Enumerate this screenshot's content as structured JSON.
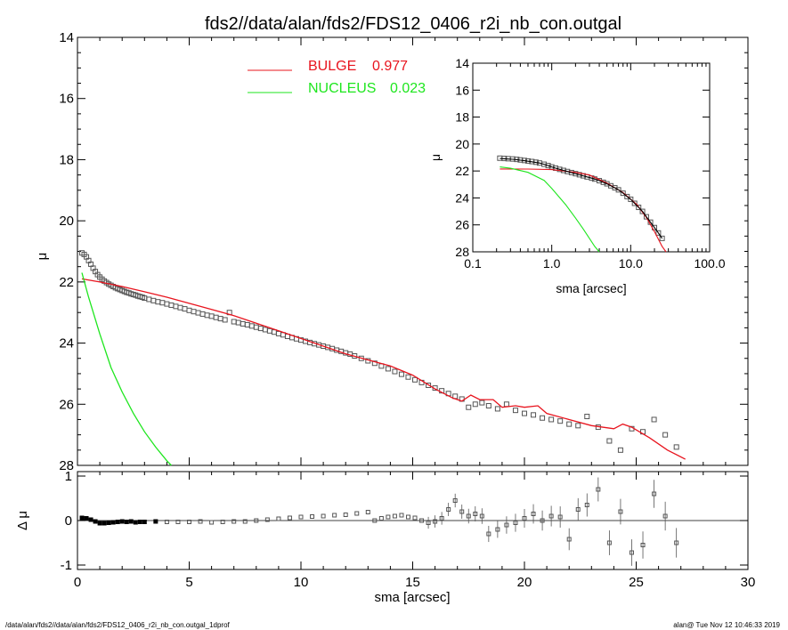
{
  "title": "fds2//data/alan/fds2/FDS12_0406_r2i_nb_con.outgal",
  "footer_left": "/data/alan/fds2//data/alan/fds2/FDS12_0406_r2i_nb_con.outgal_1dprof",
  "footer_right": "alan@  Tue Nov 12 10:46:33 2019",
  "colors": {
    "bulge": "#e8141e",
    "nucleus": "#1ee61e",
    "data": "#555555",
    "axes": "#000000"
  },
  "legend": [
    {
      "name": "BULGE",
      "value": "0.977",
      "color": "#e8141e"
    },
    {
      "name": "NUCLEUS",
      "value": "0.023",
      "color": "#1ee61e"
    }
  ],
  "chart_data": [
    {
      "id": "main",
      "type": "scatter",
      "xlabel": "",
      "ylabel": "μ",
      "xlim": [
        0,
        30
      ],
      "ylim": [
        28,
        14
      ],
      "y_inverted": true,
      "yticks": [
        "14",
        "16",
        "18",
        "20",
        "22",
        "24",
        "26",
        "28"
      ],
      "series": [
        {
          "name": "data",
          "style": "squares",
          "x": [
            0.2,
            0.3,
            0.4,
            0.5,
            0.6,
            0.7,
            0.8,
            0.9,
            1.0,
            1.1,
            1.2,
            1.3,
            1.4,
            1.5,
            1.6,
            1.7,
            1.8,
            1.9,
            2.0,
            2.1,
            2.2,
            2.3,
            2.4,
            2.5,
            2.6,
            2.7,
            2.8,
            2.9,
            3.0,
            3.2,
            3.4,
            3.6,
            3.8,
            4.0,
            4.2,
            4.4,
            4.6,
            4.8,
            5.0,
            5.2,
            5.4,
            5.6,
            5.8,
            6.0,
            6.2,
            6.4,
            6.6,
            6.8,
            7.0,
            7.2,
            7.4,
            7.6,
            7.8,
            8.0,
            8.2,
            8.4,
            8.6,
            8.8,
            9.0,
            9.2,
            9.4,
            9.6,
            9.8,
            10.0,
            10.2,
            10.4,
            10.6,
            10.8,
            11.0,
            11.2,
            11.4,
            11.6,
            11.8,
            12.0,
            12.2,
            12.4,
            12.7,
            13.0,
            13.3,
            13.6,
            13.9,
            14.2,
            14.5,
            14.8,
            15.1,
            15.4,
            15.7,
            16.0,
            16.3,
            16.6,
            16.9,
            17.2,
            17.5,
            17.8,
            18.1,
            18.4,
            18.8,
            19.2,
            19.6,
            20.0,
            20.4,
            20.8,
            21.2,
            21.6,
            22.0,
            22.4,
            22.8,
            23.3,
            23.8,
            24.3,
            24.8,
            25.3,
            25.8,
            26.3,
            26.8
          ],
          "y": [
            21.05,
            21.1,
            21.18,
            21.3,
            21.42,
            21.55,
            21.66,
            21.76,
            21.84,
            21.91,
            21.97,
            22.02,
            22.07,
            22.11,
            22.15,
            22.19,
            22.22,
            22.25,
            22.28,
            22.31,
            22.34,
            22.36,
            22.39,
            22.41,
            22.43,
            22.46,
            22.48,
            22.5,
            22.53,
            22.57,
            22.61,
            22.65,
            22.68,
            22.72,
            22.76,
            22.8,
            22.84,
            22.88,
            22.93,
            22.97,
            23.01,
            23.05,
            23.09,
            23.12,
            23.16,
            23.2,
            23.24,
            23.0,
            23.3,
            23.33,
            23.37,
            23.4,
            23.44,
            23.48,
            23.52,
            23.56,
            23.6,
            23.64,
            23.69,
            23.73,
            23.78,
            23.82,
            23.86,
            23.9,
            23.94,
            23.98,
            24.02,
            24.06,
            24.1,
            24.14,
            24.18,
            24.23,
            24.27,
            24.32,
            24.36,
            24.42,
            24.5,
            24.58,
            24.66,
            24.75,
            24.84,
            24.93,
            25.02,
            25.11,
            25.2,
            25.29,
            25.38,
            25.47,
            25.56,
            25.65,
            25.74,
            25.83,
            26.1,
            26.0,
            25.95,
            26.05,
            26.15,
            26.0,
            26.2,
            26.3,
            26.35,
            26.45,
            26.5,
            26.55,
            26.65,
            26.7,
            26.4,
            26.75,
            27.2,
            27.5,
            26.8,
            26.9,
            26.5,
            27.0,
            27.4
          ]
        },
        {
          "name": "BULGE",
          "style": "line",
          "color": "#e8141e",
          "x": [
            0.2,
            1.0,
            2.0,
            3.0,
            4.0,
            5.0,
            6.0,
            7.0,
            8.0,
            9.0,
            10.0,
            11.0,
            12.0,
            13.0,
            14.0,
            15.0,
            16.0,
            16.8,
            17.2,
            17.6,
            18.0,
            18.6,
            19.0,
            19.6,
            20.0,
            20.6,
            21.0,
            22.0,
            23.0,
            24.0,
            24.4,
            24.8,
            25.6,
            26.4,
            27.2
          ],
          "y": [
            21.9,
            22.0,
            22.15,
            22.32,
            22.5,
            22.7,
            22.9,
            23.1,
            23.35,
            23.6,
            23.85,
            24.1,
            24.35,
            24.55,
            24.75,
            25.05,
            25.5,
            25.8,
            25.9,
            25.7,
            25.85,
            25.85,
            26.1,
            26.05,
            26.1,
            26.05,
            26.3,
            26.5,
            26.7,
            26.8,
            26.65,
            26.75,
            27.1,
            27.5,
            27.8
          ]
        },
        {
          "name": "NUCLEUS",
          "style": "line",
          "color": "#1ee61e",
          "x": [
            0.2,
            0.5,
            1.0,
            1.5,
            2.0,
            2.5,
            3.0,
            3.5,
            4.0,
            4.2
          ],
          "y": [
            21.7,
            22.5,
            23.7,
            24.8,
            25.6,
            26.3,
            26.9,
            27.4,
            27.85,
            28.0
          ]
        }
      ]
    },
    {
      "id": "residual",
      "type": "scatter",
      "xlabel": "sma [arcsec]",
      "ylabel": "Δ μ",
      "xlim": [
        0,
        30
      ],
      "ylim": [
        -1.1,
        1.1
      ],
      "xticks": [
        "0",
        "5",
        "10",
        "15",
        "20",
        "25",
        "30"
      ],
      "yticks": [
        "-1",
        "0",
        "1"
      ],
      "x": [
        0.2,
        0.4,
        0.6,
        0.8,
        1.0,
        1.2,
        1.4,
        1.6,
        1.8,
        2.0,
        2.2,
        2.4,
        2.6,
        2.8,
        3.0,
        3.5,
        4.0,
        4.5,
        5.0,
        5.5,
        6.0,
        6.5,
        7.0,
        7.5,
        8.0,
        8.5,
        9.0,
        9.5,
        10.0,
        10.5,
        11.0,
        11.5,
        12.0,
        12.5,
        13.0,
        13.3,
        13.6,
        13.9,
        14.2,
        14.5,
        14.8,
        15.1,
        15.4,
        15.7,
        16.0,
        16.3,
        16.6,
        16.9,
        17.2,
        17.5,
        17.8,
        18.1,
        18.4,
        18.8,
        19.2,
        19.6,
        20.0,
        20.4,
        20.8,
        21.2,
        21.6,
        22.0,
        22.4,
        22.8,
        23.3,
        23.8,
        24.3,
        24.8,
        25.3,
        25.8,
        26.3,
        26.8
      ],
      "y": [
        0.06,
        0.05,
        0.02,
        -0.02,
        -0.06,
        -0.06,
        -0.05,
        -0.04,
        -0.03,
        -0.02,
        -0.03,
        -0.02,
        -0.04,
        -0.03,
        -0.03,
        -0.02,
        -0.03,
        -0.03,
        -0.03,
        -0.02,
        -0.04,
        -0.03,
        -0.02,
        -0.02,
        0.0,
        0.02,
        0.04,
        0.06,
        0.08,
        0.09,
        0.1,
        0.12,
        0.13,
        0.16,
        0.19,
        0.0,
        0.05,
        0.08,
        0.1,
        0.12,
        0.08,
        0.06,
        0.0,
        -0.05,
        -0.02,
        0.05,
        0.25,
        0.45,
        0.2,
        0.1,
        0.15,
        0.1,
        -0.3,
        -0.2,
        -0.1,
        -0.05,
        0.05,
        0.15,
        0.0,
        0.1,
        0.08,
        -0.42,
        0.25,
        0.35,
        0.7,
        -0.5,
        0.2,
        -0.72,
        -0.55,
        0.6,
        0.1,
        -0.5
      ],
      "zero_line": 0
    },
    {
      "id": "inset",
      "type": "scatter",
      "xlabel": "sma [arcsec]",
      "ylabel": "μ",
      "x_scale": "log",
      "xlim": [
        0.1,
        100
      ],
      "ylim": [
        28,
        14
      ],
      "xticks": [
        "0.1",
        "1.0",
        "10.0",
        "100.0"
      ],
      "yticks": [
        "14",
        "16",
        "18",
        "20",
        "22",
        "24",
        "26",
        "28"
      ],
      "data_x": [
        0.22,
        0.25,
        0.28,
        0.32,
        0.36,
        0.4,
        0.45,
        0.5,
        0.56,
        0.63,
        0.7,
        0.8,
        0.9,
        1.0,
        1.12,
        1.26,
        1.41,
        1.58,
        1.78,
        2.0,
        2.24,
        2.5,
        2.8,
        3.2,
        3.5,
        4.0,
        4.5,
        5.0,
        5.6,
        6.3,
        7.0,
        8.0,
        9.0,
        10.0,
        11.2,
        12.6,
        14.1,
        15.8,
        17.8,
        20.0,
        22.4,
        25.0
      ],
      "data_y": [
        21.05,
        21.07,
        21.09,
        21.11,
        21.14,
        21.18,
        21.22,
        21.26,
        21.3,
        21.35,
        21.41,
        21.5,
        21.6,
        21.7,
        21.79,
        21.88,
        21.96,
        22.04,
        22.12,
        22.2,
        22.28,
        22.36,
        22.44,
        22.53,
        22.6,
        22.72,
        22.84,
        22.95,
        23.1,
        23.25,
        23.4,
        23.65,
        23.9,
        24.1,
        24.4,
        24.7,
        25.0,
        25.4,
        25.8,
        26.2,
        26.6,
        27.0
      ],
      "bulge_x": [
        0.22,
        0.5,
        1.0,
        2.0,
        3.0,
        5.0,
        8.0,
        12.0,
        16.0,
        20.0,
        25.0,
        28.0
      ],
      "bulge_y": [
        21.85,
        21.86,
        21.9,
        22.1,
        22.3,
        22.9,
        23.6,
        24.5,
        25.5,
        26.5,
        27.6,
        28.0
      ],
      "nucleus_x": [
        0.22,
        0.3,
        0.5,
        0.8,
        1.0,
        1.5,
        2.0,
        2.5,
        3.0,
        3.5,
        4.0
      ],
      "nucleus_y": [
        21.7,
        21.8,
        22.1,
        22.7,
        23.3,
        24.5,
        25.5,
        26.3,
        27.0,
        27.6,
        28.0
      ]
    }
  ]
}
